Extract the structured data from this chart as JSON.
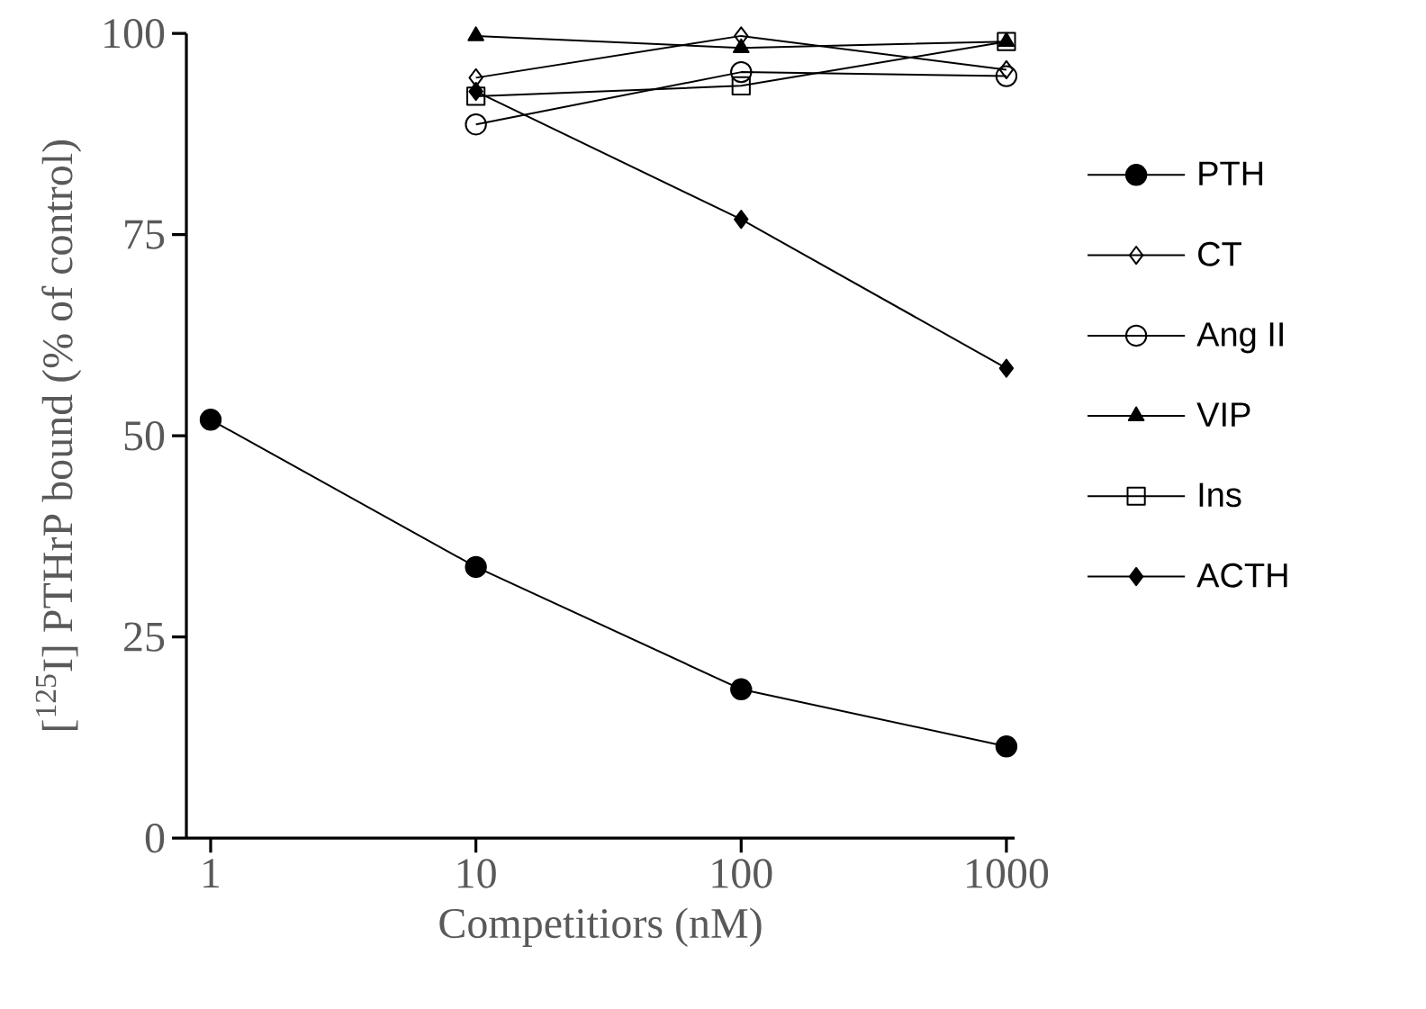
{
  "chart_data": {
    "type": "line",
    "xlabel": "Competitiors (nM)",
    "ylabel": "[$^{125}$I] PTHrP bound (% of control)",
    "x": [
      1,
      10,
      100,
      1000
    ],
    "log": "x",
    "xlim": [
      0.81,
      1074
    ],
    "xticks": [
      1,
      10,
      100,
      1000
    ],
    "ylim": [
      0,
      100
    ],
    "yticks": [
      0,
      25,
      50,
      75,
      100
    ],
    "grid": false,
    "legend": "right",
    "line_style": "solid",
    "series": [
      {
        "name": "PTH",
        "color": "#000000",
        "marker": "circle",
        "values": [
          52,
          33.7,
          18.5,
          11.4
        ]
      },
      {
        "name": "CT",
        "color": "#000000",
        "marker": "diamond",
        "x": [
          10,
          100,
          1000
        ],
        "values": [
          94.5,
          99.7,
          95.5
        ]
      },
      {
        "name": "Ang II",
        "color": "#000000",
        "marker": "circle",
        "x": [
          10,
          100,
          1000
        ],
        "values": [
          88.7,
          95.2,
          94.7
        ]
      },
      {
        "name": "VIP",
        "color": "#000000",
        "marker": "triangle",
        "x": [
          10,
          100,
          1000
        ],
        "values": [
          99.7,
          98.2,
          99
        ]
      },
      {
        "name": "Ins",
        "color": "#000000",
        "marker": "square",
        "x": [
          10,
          100,
          1000
        ],
        "values": [
          92.2,
          93.5,
          99
        ]
      },
      {
        "name": "ACTH",
        "color": "#000000",
        "marker": "diamond",
        "x": [
          10,
          100,
          1000
        ],
        "values": [
          92.8,
          76.9,
          58.4
        ]
      }
    ]
  }
}
